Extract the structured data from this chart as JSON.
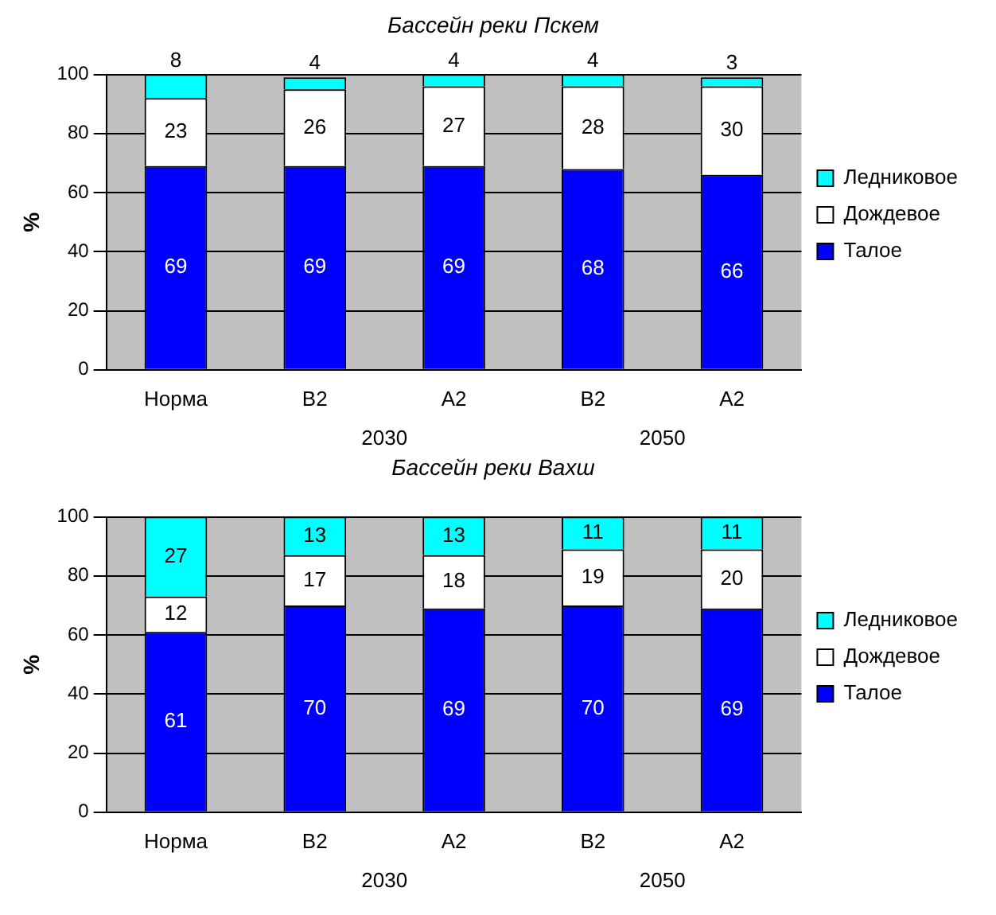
{
  "chart_data": [
    {
      "type": "bar",
      "title": "Бассейн реки Пскем",
      "ylabel": "%",
      "categories": [
        "Норма",
        "B2",
        "A2",
        "B2",
        "A2"
      ],
      "stacked": true,
      "ylim": [
        0,
        100
      ],
      "yticks": [
        0,
        20,
        40,
        60,
        80,
        100
      ],
      "grid": "y",
      "legend": "right",
      "data_labels": true,
      "annotations": [
        "2030",
        "2050"
      ],
      "series": [
        {
          "name": "Талое",
          "color": "#0000ff",
          "values": [
            69,
            69,
            69,
            68,
            66
          ]
        },
        {
          "name": "Дождевое",
          "color": "#ffffff",
          "values": [
            23,
            26,
            27,
            28,
            30
          ]
        },
        {
          "name": "Ледниковое",
          "color": "#00ffff",
          "values": [
            8,
            4,
            4,
            4,
            3
          ]
        }
      ]
    },
    {
      "type": "bar",
      "title": "Бассейн реки Вахш",
      "ylabel": "%",
      "categories": [
        "Норма",
        "B2",
        "A2",
        "B2",
        "A2"
      ],
      "stacked": true,
      "ylim": [
        0,
        100
      ],
      "yticks": [
        0,
        20,
        40,
        60,
        80,
        100
      ],
      "grid": "y",
      "legend": "right",
      "data_labels": true,
      "annotations": [
        "2030",
        "2050"
      ],
      "series": [
        {
          "name": "Талое",
          "color": "#0000ff",
          "values": [
            61,
            70,
            69,
            70,
            69
          ]
        },
        {
          "name": "Дождевое",
          "color": "#ffffff",
          "values": [
            12,
            17,
            18,
            19,
            20
          ]
        },
        {
          "name": "Ледниковое",
          "color": "#00ffff",
          "values": [
            27,
            13,
            13,
            11,
            11
          ]
        }
      ]
    }
  ]
}
